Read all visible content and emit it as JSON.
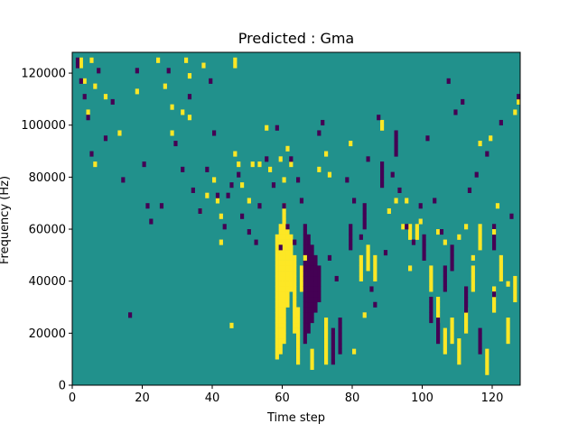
{
  "chart_data": {
    "type": "heatmap",
    "title": "Predicted : Gma",
    "xlabel": "Time step",
    "ylabel": "Frequency (Hz)",
    "xlim": [
      0,
      128
    ],
    "ylim": [
      0,
      128000
    ],
    "n_bins": 64,
    "x_ticks": [
      0,
      20,
      40,
      60,
      80,
      100,
      120
    ],
    "y_ticks": [
      0,
      20000,
      40000,
      60000,
      80000,
      100000,
      120000
    ],
    "grid": false,
    "legend": "none",
    "colors": {
      "background": "#21918c",
      "positive": "#fde725",
      "negative": "#440154"
    },
    "values_legend": {
      "background": 0,
      "positive": 1,
      "negative": -1
    },
    "yellow_cells": [
      [
        2,
        62
      ],
      [
        2,
        61
      ],
      [
        3,
        58
      ],
      [
        4,
        52
      ],
      [
        5,
        62
      ],
      [
        6,
        57
      ],
      [
        6,
        42
      ],
      [
        9,
        55
      ],
      [
        13,
        48
      ],
      [
        18,
        56
      ],
      [
        24,
        62
      ],
      [
        26,
        57
      ],
      [
        28,
        53
      ],
      [
        28,
        48
      ],
      [
        31,
        52
      ],
      [
        32,
        62
      ],
      [
        33,
        59
      ],
      [
        33,
        51
      ],
      [
        36,
        33
      ],
      [
        37,
        61
      ],
      [
        38,
        36
      ],
      [
        40,
        39
      ],
      [
        41,
        35
      ],
      [
        42,
        32
      ],
      [
        42,
        27
      ],
      [
        45,
        11
      ],
      [
        46,
        62
      ],
      [
        46,
        61
      ],
      [
        46,
        44
      ],
      [
        47,
        42
      ],
      [
        48,
        38
      ],
      [
        50,
        35
      ],
      [
        51,
        42
      ],
      [
        53,
        42
      ],
      [
        55,
        49
      ],
      [
        56,
        41
      ],
      [
        59,
        43
      ],
      [
        60,
        39
      ],
      [
        61,
        45
      ],
      [
        62,
        42
      ],
      [
        66,
        24
      ],
      [
        70,
        41
      ],
      [
        72,
        44
      ],
      [
        73,
        40
      ],
      [
        79,
        46
      ],
      [
        80,
        6
      ],
      [
        83,
        13
      ],
      [
        88,
        49
      ],
      [
        88,
        50
      ],
      [
        90,
        33
      ],
      [
        92,
        35
      ],
      [
        94,
        30
      ],
      [
        95,
        35
      ],
      [
        96,
        22
      ],
      [
        99,
        31
      ],
      [
        104,
        29
      ],
      [
        106,
        27
      ],
      [
        110,
        28
      ],
      [
        112,
        30
      ],
      [
        114,
        24
      ],
      [
        116,
        46
      ],
      [
        119,
        47
      ],
      [
        120,
        29
      ],
      [
        121,
        34
      ],
      [
        124,
        19
      ],
      [
        126,
        52
      ],
      [
        127,
        54
      ]
    ],
    "yellow_runs": [
      [
        58,
        5,
        28
      ],
      [
        59,
        6,
        30
      ],
      [
        60,
        8,
        34
      ],
      [
        61,
        15,
        30
      ],
      [
        62,
        18,
        28
      ],
      [
        63,
        10,
        24
      ],
      [
        64,
        4,
        14
      ],
      [
        65,
        18,
        22
      ],
      [
        68,
        3,
        6
      ],
      [
        69,
        17,
        20
      ],
      [
        72,
        4,
        12
      ],
      [
        82,
        20,
        24
      ],
      [
        84,
        22,
        26
      ],
      [
        86,
        20,
        24
      ],
      [
        96,
        28,
        30
      ],
      [
        98,
        28,
        30
      ],
      [
        102,
        18,
        22
      ],
      [
        104,
        12,
        16
      ],
      [
        106,
        6,
        10
      ],
      [
        108,
        8,
        12
      ],
      [
        110,
        4,
        8
      ],
      [
        112,
        10,
        14
      ],
      [
        114,
        18,
        22
      ],
      [
        116,
        26,
        30
      ],
      [
        118,
        2,
        6
      ],
      [
        120,
        14,
        18
      ],
      [
        122,
        20,
        24
      ],
      [
        124,
        8,
        12
      ],
      [
        126,
        16,
        20
      ]
    ],
    "purple_cells": [
      [
        1,
        61
      ],
      [
        1,
        62
      ],
      [
        2,
        58
      ],
      [
        3,
        55
      ],
      [
        4,
        51
      ],
      [
        5,
        44
      ],
      [
        7,
        60
      ],
      [
        9,
        47
      ],
      [
        11,
        54
      ],
      [
        14,
        39
      ],
      [
        16,
        13
      ],
      [
        18,
        60
      ],
      [
        20,
        42
      ],
      [
        21,
        34
      ],
      [
        22,
        31
      ],
      [
        25,
        34
      ],
      [
        27,
        60
      ],
      [
        29,
        46
      ],
      [
        31,
        41
      ],
      [
        33,
        55
      ],
      [
        34,
        37
      ],
      [
        36,
        33
      ],
      [
        38,
        41
      ],
      [
        39,
        58
      ],
      [
        40,
        48
      ],
      [
        41,
        36
      ],
      [
        43,
        30
      ],
      [
        44,
        36
      ],
      [
        45,
        38
      ],
      [
        47,
        40
      ],
      [
        48,
        32
      ],
      [
        50,
        29
      ],
      [
        52,
        27
      ],
      [
        53,
        34
      ],
      [
        55,
        43
      ],
      [
        57,
        38
      ],
      [
        58,
        49
      ],
      [
        59,
        26
      ],
      [
        60,
        34
      ],
      [
        61,
        30
      ],
      [
        62,
        43
      ],
      [
        63,
        27
      ],
      [
        64,
        39
      ],
      [
        65,
        35
      ],
      [
        67,
        22
      ],
      [
        70,
        48
      ],
      [
        71,
        50
      ],
      [
        73,
        24
      ],
      [
        75,
        20
      ],
      [
        78,
        39
      ],
      [
        80,
        35
      ],
      [
        82,
        28
      ],
      [
        84,
        43
      ],
      [
        85,
        18
      ],
      [
        86,
        15
      ],
      [
        87,
        51
      ],
      [
        89,
        25
      ],
      [
        91,
        40
      ],
      [
        93,
        37
      ],
      [
        95,
        30
      ],
      [
        97,
        27
      ],
      [
        99,
        34
      ],
      [
        101,
        47
      ],
      [
        103,
        35
      ],
      [
        105,
        29
      ],
      [
        107,
        58
      ],
      [
        109,
        52
      ],
      [
        111,
        54
      ],
      [
        113,
        37
      ],
      [
        115,
        40
      ],
      [
        118,
        44
      ],
      [
        120,
        17
      ],
      [
        122,
        50
      ],
      [
        125,
        32
      ],
      [
        127,
        55
      ]
    ],
    "purple_runs": [
      [
        66,
        8,
        30
      ],
      [
        67,
        10,
        28
      ],
      [
        68,
        12,
        26
      ],
      [
        69,
        14,
        24
      ],
      [
        70,
        16,
        22
      ],
      [
        74,
        4,
        10
      ],
      [
        76,
        6,
        12
      ],
      [
        79,
        26,
        30
      ],
      [
        83,
        30,
        34
      ],
      [
        88,
        38,
        42
      ],
      [
        92,
        44,
        48
      ],
      [
        100,
        24,
        28
      ],
      [
        102,
        12,
        16
      ],
      [
        104,
        8,
        12
      ],
      [
        106,
        18,
        22
      ],
      [
        108,
        22,
        26
      ],
      [
        112,
        14,
        18
      ],
      [
        116,
        6,
        10
      ],
      [
        120,
        26,
        30
      ]
    ]
  }
}
